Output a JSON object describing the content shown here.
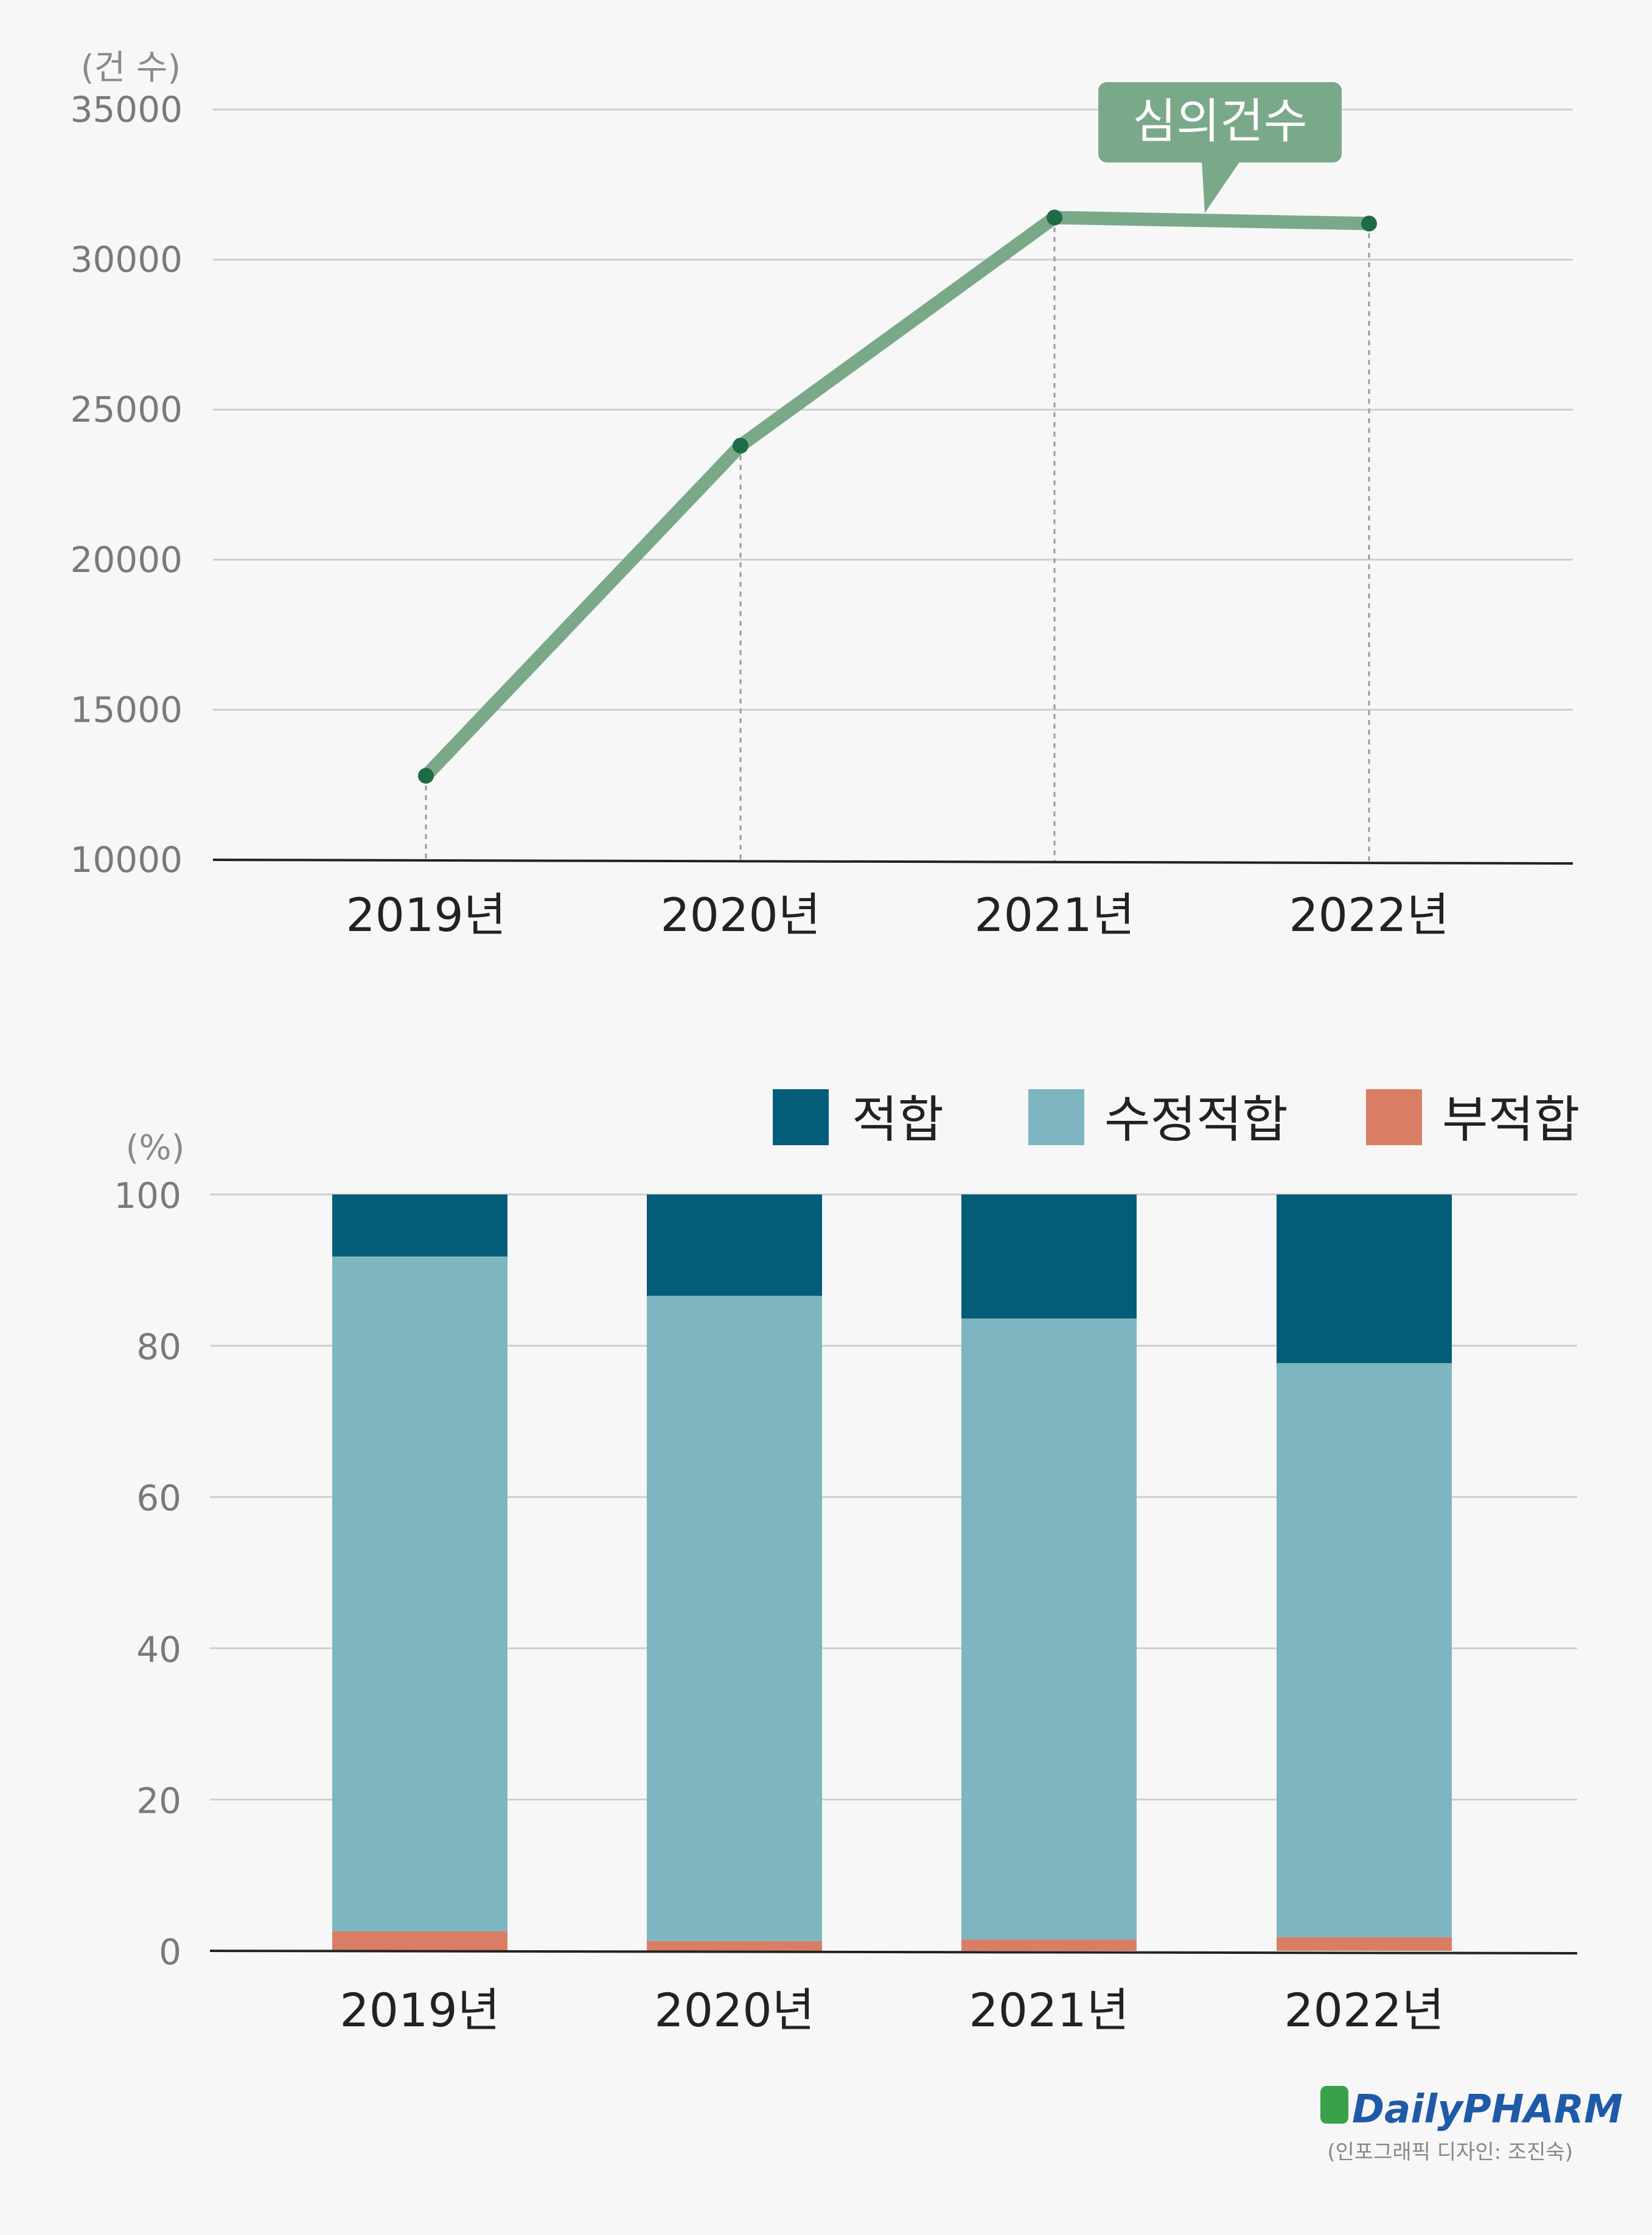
{
  "colors": {
    "line": "#7aa98a",
    "marker": "#1f6b48",
    "callout": "#7aa98a",
    "fit": "#035d78",
    "mod": "#7db6c0",
    "unfit": "#d97e64",
    "logo_green": "#3aa14a",
    "logo_blue": "#1f5aa8"
  },
  "chart_data": [
    {
      "type": "line",
      "unit_label": "(건 수)",
      "categories": [
        "2019년",
        "2020년",
        "2021년",
        "2022년"
      ],
      "series": [
        {
          "name": "심의건수",
          "values": [
            12800,
            23800,
            31400,
            31200
          ]
        }
      ],
      "ylim": [
        10000,
        35000
      ],
      "yticks": [
        "10000",
        "15000",
        "20000",
        "25000",
        "30000",
        "35000"
      ],
      "callout": "심의건수",
      "grid": true
    },
    {
      "type": "bar",
      "stacked": true,
      "unit_label": "(%)",
      "categories": [
        "2019년",
        "2020년",
        "2021년",
        "2022년"
      ],
      "series": [
        {
          "name": "부적합",
          "values": [
            2.6,
            1.3,
            1.5,
            1.8
          ]
        },
        {
          "name": "수정적합",
          "values": [
            89.2,
            85.3,
            82.1,
            75.9
          ]
        },
        {
          "name": "적합",
          "values": [
            8.2,
            13.4,
            16.4,
            22.3
          ]
        }
      ],
      "legend": [
        "적합",
        "수정적합",
        "부적합"
      ],
      "ylim": [
        0,
        100
      ],
      "yticks": [
        "0",
        "20",
        "40",
        "60",
        "80",
        "100"
      ],
      "grid": true
    }
  ],
  "footer": {
    "logo_text": "DailyPHARM",
    "credit": "(인포그래픽 디자인: 조진숙)"
  }
}
